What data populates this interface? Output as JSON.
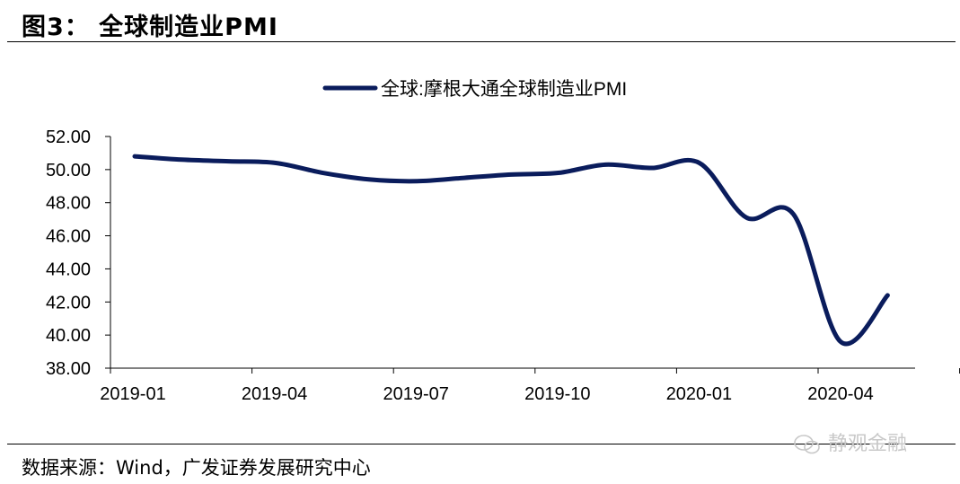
{
  "figure": {
    "title": "图3：  全球制造业PMI",
    "source": "数据来源：Wind，广发证券发展研究中心",
    "watermark": "静观金融"
  },
  "colors": {
    "series": "#0a1c5c",
    "axis": "#000000",
    "watermark": "#c8c8c8"
  },
  "chart_data": {
    "type": "line",
    "title": "",
    "xlabel": "",
    "ylabel": "",
    "ylim": [
      38,
      52
    ],
    "yticks": [
      "38.00",
      "40.00",
      "42.00",
      "44.00",
      "46.00",
      "48.00",
      "50.00",
      "52.00"
    ],
    "xtick_labels": [
      "2019-01",
      "2019-04",
      "2019-07",
      "2019-10",
      "2020-01",
      "2020-04"
    ],
    "grid": false,
    "legend_position": "top-center",
    "series": [
      {
        "name": "全球:摩根大通全球制造业PMI",
        "x": [
          "2019-01",
          "2019-02",
          "2019-03",
          "2019-04",
          "2019-05",
          "2019-06",
          "2019-07",
          "2019-08",
          "2019-09",
          "2019-10",
          "2019-11",
          "2019-12",
          "2020-01",
          "2020-02",
          "2020-03",
          "2020-04",
          "2020-05"
        ],
        "values": [
          50.8,
          50.6,
          50.5,
          50.4,
          49.8,
          49.4,
          49.3,
          49.5,
          49.7,
          49.8,
          50.3,
          50.1,
          50.4,
          47.1,
          47.3,
          39.6,
          42.4
        ]
      }
    ]
  }
}
